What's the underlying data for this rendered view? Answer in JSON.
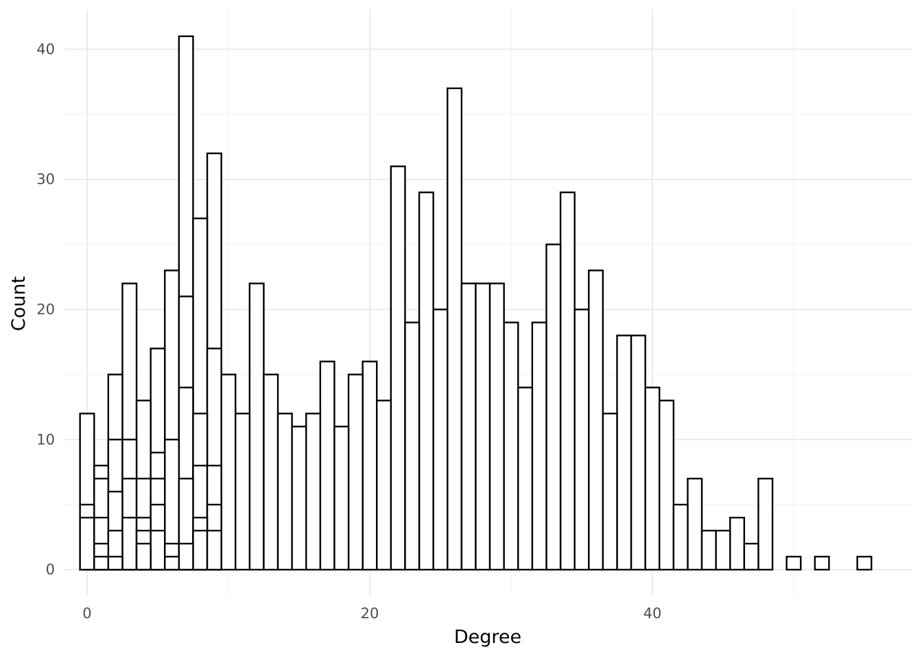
{
  "chart_data": {
    "type": "bar",
    "xlabel": "Degree",
    "ylabel": "Count",
    "xlim": [
      -1.6,
      58.4
    ],
    "ylim": [
      -2.05,
      43.05
    ],
    "x_ticks": [
      0,
      20,
      40
    ],
    "y_ticks": [
      0,
      10,
      20,
      30,
      40
    ],
    "x_minor_ticks": [
      10,
      30,
      50
    ],
    "y_minor_ticks": [
      5,
      15,
      25,
      35
    ],
    "grid": true,
    "bar_width": 1,
    "fill_color": "#ffffff",
    "stroke_color": "#000000",
    "bars": [
      {
        "x": 0,
        "y": 12
      },
      {
        "x": 0,
        "y": 5
      },
      {
        "x": 0,
        "y": 4
      },
      {
        "x": 1,
        "y": 8
      },
      {
        "x": 1,
        "y": 7
      },
      {
        "x": 1,
        "y": 4
      },
      {
        "x": 1,
        "y": 2
      },
      {
        "x": 1,
        "y": 1
      },
      {
        "x": 2,
        "y": 15
      },
      {
        "x": 2,
        "y": 10
      },
      {
        "x": 2,
        "y": 6
      },
      {
        "x": 2,
        "y": 3
      },
      {
        "x": 2,
        "y": 1
      },
      {
        "x": 3,
        "y": 22
      },
      {
        "x": 3,
        "y": 10
      },
      {
        "x": 3,
        "y": 7
      },
      {
        "x": 3,
        "y": 4
      },
      {
        "x": 4,
        "y": 13
      },
      {
        "x": 4,
        "y": 7
      },
      {
        "x": 4,
        "y": 4
      },
      {
        "x": 4,
        "y": 3
      },
      {
        "x": 4,
        "y": 2
      },
      {
        "x": 5,
        "y": 17
      },
      {
        "x": 5,
        "y": 9
      },
      {
        "x": 5,
        "y": 7
      },
      {
        "x": 5,
        "y": 5
      },
      {
        "x": 5,
        "y": 3
      },
      {
        "x": 6,
        "y": 23
      },
      {
        "x": 6,
        "y": 10
      },
      {
        "x": 6,
        "y": 2
      },
      {
        "x": 6,
        "y": 1
      },
      {
        "x": 7,
        "y": 41
      },
      {
        "x": 7,
        "y": 21
      },
      {
        "x": 7,
        "y": 14
      },
      {
        "x": 7,
        "y": 7
      },
      {
        "x": 7,
        "y": 2
      },
      {
        "x": 8,
        "y": 27
      },
      {
        "x": 8,
        "y": 12
      },
      {
        "x": 8,
        "y": 8
      },
      {
        "x": 8,
        "y": 4
      },
      {
        "x": 8,
        "y": 3
      },
      {
        "x": 9,
        "y": 32
      },
      {
        "x": 9,
        "y": 17
      },
      {
        "x": 9,
        "y": 8
      },
      {
        "x": 9,
        "y": 5
      },
      {
        "x": 9,
        "y": 3
      },
      {
        "x": 10,
        "y": 15
      },
      {
        "x": 11,
        "y": 12
      },
      {
        "x": 12,
        "y": 22
      },
      {
        "x": 13,
        "y": 15
      },
      {
        "x": 14,
        "y": 12
      },
      {
        "x": 15,
        "y": 11
      },
      {
        "x": 16,
        "y": 12
      },
      {
        "x": 17,
        "y": 16
      },
      {
        "x": 18,
        "y": 11
      },
      {
        "x": 19,
        "y": 15
      },
      {
        "x": 20,
        "y": 16
      },
      {
        "x": 21,
        "y": 13
      },
      {
        "x": 22,
        "y": 31
      },
      {
        "x": 23,
        "y": 19
      },
      {
        "x": 24,
        "y": 29
      },
      {
        "x": 25,
        "y": 20
      },
      {
        "x": 26,
        "y": 37
      },
      {
        "x": 27,
        "y": 22
      },
      {
        "x": 28,
        "y": 22
      },
      {
        "x": 29,
        "y": 22
      },
      {
        "x": 30,
        "y": 19
      },
      {
        "x": 31,
        "y": 14
      },
      {
        "x": 32,
        "y": 19
      },
      {
        "x": 33,
        "y": 25
      },
      {
        "x": 34,
        "y": 29
      },
      {
        "x": 35,
        "y": 20
      },
      {
        "x": 36,
        "y": 23
      },
      {
        "x": 37,
        "y": 12
      },
      {
        "x": 38,
        "y": 18
      },
      {
        "x": 39,
        "y": 18
      },
      {
        "x": 40,
        "y": 14
      },
      {
        "x": 41,
        "y": 13
      },
      {
        "x": 42,
        "y": 5
      },
      {
        "x": 43,
        "y": 7
      },
      {
        "x": 44,
        "y": 3
      },
      {
        "x": 45,
        "y": 3
      },
      {
        "x": 46,
        "y": 4
      },
      {
        "x": 47,
        "y": 2
      },
      {
        "x": 48,
        "y": 7
      },
      {
        "x": 50,
        "y": 1
      },
      {
        "x": 52,
        "y": 1
      },
      {
        "x": 55,
        "y": 1
      }
    ]
  }
}
